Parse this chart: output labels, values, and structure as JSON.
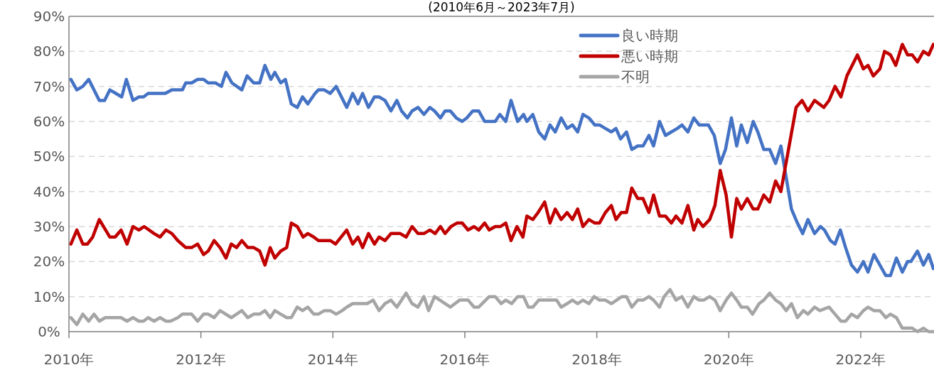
{
  "chart_data": {
    "type": "line",
    "title": "(2010年6月～2023年7月)",
    "xlim": [
      2010,
      2023.11
    ],
    "xticks": [
      {
        "value": 2010,
        "label": "2010年"
      },
      {
        "value": 2012,
        "label": "2012年"
      },
      {
        "value": 2014,
        "label": "2014年"
      },
      {
        "value": 2016,
        "label": "2016年"
      },
      {
        "value": 2018,
        "label": "2018年"
      },
      {
        "value": 2020,
        "label": "2020年"
      },
      {
        "value": 2022,
        "label": "2022年"
      }
    ],
    "ylim": [
      0,
      90
    ],
    "yticks": [
      {
        "value": 0,
        "label": "0%"
      },
      {
        "value": 10,
        "label": "10%"
      },
      {
        "value": 20,
        "label": "20%"
      },
      {
        "value": 30,
        "label": "30%"
      },
      {
        "value": 40,
        "label": "40%"
      },
      {
        "value": 50,
        "label": "50%"
      },
      {
        "value": 60,
        "label": "60%"
      },
      {
        "value": 70,
        "label": "70%"
      },
      {
        "value": 80,
        "label": "80%"
      },
      {
        "value": 90,
        "label": "90%"
      }
    ],
    "grid": "y",
    "legend": "top right",
    "marker": "none",
    "line_style": "solid",
    "series": [
      {
        "name": "良い時期",
        "color": "#4472c4",
        "x": [
          2010.03,
          2010.12,
          2010.21,
          2010.3,
          2010.46,
          2010.54,
          2010.62,
          2010.71,
          2010.8,
          2010.87,
          2010.97,
          2011.06,
          2011.13,
          2011.2,
          2011.46,
          2011.56,
          2011.72,
          2011.77,
          2011.86,
          2011.95,
          2012.04,
          2012.11,
          2012.22,
          2012.31,
          2012.38,
          2012.47,
          2012.62,
          2012.7,
          2012.8,
          2012.89,
          2012.97,
          2013.06,
          2013.12,
          2013.21,
          2013.28,
          2013.37,
          2013.46,
          2013.54,
          2013.62,
          2013.73,
          2013.78,
          2013.87,
          2013.96,
          2014.05,
          2014.21,
          2014.3,
          2014.38,
          2014.45,
          2014.54,
          2014.63,
          2014.7,
          2014.79,
          2014.88,
          2014.97,
          2015.04,
          2015.13,
          2015.2,
          2015.29,
          2015.38,
          2015.47,
          2015.54,
          2015.63,
          2015.7,
          2015.78,
          2015.87,
          2015.96,
          2016.03,
          2016.12,
          2016.21,
          2016.3,
          2016.46,
          2016.53,
          2016.62,
          2016.7,
          2016.8,
          2016.89,
          2016.94,
          2017.03,
          2017.12,
          2017.21,
          2017.29,
          2017.37,
          2017.46,
          2017.55,
          2017.63,
          2017.71,
          2017.79,
          2017.88,
          2017.97,
          2018.04,
          2018.13,
          2018.22,
          2018.29,
          2018.36,
          2018.45,
          2018.53,
          2018.62,
          2018.7,
          2018.79,
          2018.86,
          2018.95,
          2019.04,
          2019.13,
          2019.22,
          2019.29,
          2019.38,
          2019.47,
          2019.55,
          2019.69,
          2019.78,
          2019.87,
          2019.95,
          2020.04,
          2020.12,
          2020.19,
          2020.28,
          2020.37,
          2020.44,
          2020.53,
          2020.62,
          2020.71,
          2020.79,
          2020.95,
          2021.04,
          2021.12,
          2021.2,
          2021.3,
          2021.39,
          2021.45,
          2021.54,
          2021.61,
          2021.69,
          2021.77,
          2021.86,
          2021.95,
          2022.04,
          2022.11,
          2022.2,
          2022.29,
          2022.38,
          2022.45,
          2022.54,
          2022.63,
          2022.71,
          2022.76,
          2022.86,
          2022.95,
          2023.03,
          2023.1
        ],
        "values": [
          72,
          69,
          70,
          72,
          66,
          66,
          69,
          68,
          67,
          72,
          66,
          67,
          67,
          68,
          68,
          69,
          69,
          71,
          71,
          72,
          72,
          71,
          71,
          70,
          74,
          71,
          69,
          73,
          71,
          71,
          76,
          72,
          74,
          71,
          72,
          65,
          64,
          67,
          65,
          68,
          69,
          69,
          68,
          70,
          64,
          68,
          65,
          68,
          64,
          67,
          67,
          66,
          63,
          66,
          63,
          61,
          63,
          64,
          62,
          64,
          63,
          61,
          63,
          63,
          61,
          60,
          61,
          63,
          63,
          60,
          60,
          62,
          60,
          66,
          60,
          62,
          60,
          62,
          57,
          55,
          59,
          57,
          61,
          58,
          59,
          57,
          62,
          61,
          59,
          59,
          58,
          57,
          58,
          55,
          57,
          52,
          53,
          53,
          56,
          53,
          60,
          56,
          57,
          58,
          59,
          57,
          61,
          59,
          59,
          56,
          48,
          52,
          61,
          53,
          59,
          54,
          60,
          57,
          52,
          52,
          48,
          53,
          35,
          31,
          28,
          32,
          28,
          30,
          29,
          26,
          25,
          29,
          24,
          19,
          17,
          20,
          17,
          22,
          19,
          16,
          16,
          21,
          17,
          20,
          20,
          23,
          19,
          22,
          18
        ]
      },
      {
        "name": "悪い時期",
        "color": "#c00000",
        "x": [
          2010.03,
          2010.12,
          2010.21,
          2010.28,
          2010.36,
          2010.46,
          2010.62,
          2010.7,
          2010.79,
          2010.88,
          2010.97,
          2011.06,
          2011.14,
          2011.29,
          2011.38,
          2011.47,
          2011.56,
          2011.65,
          2011.77,
          2011.86,
          2011.95,
          2012.04,
          2012.11,
          2012.2,
          2012.29,
          2012.38,
          2012.46,
          2012.54,
          2012.62,
          2012.71,
          2012.8,
          2012.89,
          2012.97,
          2013.05,
          2013.12,
          2013.21,
          2013.3,
          2013.37,
          2013.46,
          2013.55,
          2013.62,
          2013.71,
          2013.78,
          2013.96,
          2014.04,
          2014.21,
          2014.3,
          2014.38,
          2014.45,
          2014.54,
          2014.63,
          2014.7,
          2014.79,
          2014.88,
          2015.02,
          2015.11,
          2015.2,
          2015.29,
          2015.38,
          2015.47,
          2015.55,
          2015.63,
          2015.7,
          2015.79,
          2015.88,
          2015.96,
          2016.05,
          2016.14,
          2016.21,
          2016.3,
          2016.37,
          2016.46,
          2016.54,
          2016.62,
          2016.7,
          2016.79,
          2016.88,
          2016.94,
          2017.03,
          2017.11,
          2017.21,
          2017.29,
          2017.37,
          2017.46,
          2017.55,
          2017.63,
          2017.71,
          2017.79,
          2017.88,
          2017.97,
          2018.04,
          2018.13,
          2018.22,
          2018.29,
          2018.37,
          2018.45,
          2018.53,
          2018.62,
          2018.7,
          2018.79,
          2018.86,
          2018.95,
          2019.04,
          2019.13,
          2019.2,
          2019.29,
          2019.38,
          2019.47,
          2019.53,
          2019.61,
          2019.71,
          2019.79,
          2019.87,
          2019.96,
          2020.04,
          2020.12,
          2020.19,
          2020.28,
          2020.37,
          2020.44,
          2020.53,
          2020.62,
          2020.71,
          2020.79,
          2021.02,
          2021.11,
          2021.2,
          2021.3,
          2021.44,
          2021.52,
          2021.61,
          2021.7,
          2021.79,
          2021.95,
          2022.04,
          2022.11,
          2022.19,
          2022.29,
          2022.36,
          2022.45,
          2022.53,
          2022.63,
          2022.71,
          2022.78,
          2022.86,
          2022.95,
          2023.03,
          2023.1
        ],
        "values": [
          25,
          29,
          25,
          25,
          27,
          32,
          27,
          27,
          29,
          25,
          30,
          29,
          30,
          28,
          27,
          29,
          28,
          26,
          24,
          24,
          25,
          22,
          23,
          26,
          24,
          21,
          25,
          24,
          26,
          24,
          24,
          23,
          19,
          24,
          21,
          23,
          24,
          31,
          30,
          27,
          28,
          27,
          26,
          26,
          25,
          29,
          25,
          27,
          24,
          28,
          25,
          27,
          26,
          28,
          28,
          27,
          30,
          28,
          28,
          29,
          28,
          30,
          28,
          30,
          31,
          31,
          29,
          30,
          29,
          31,
          29,
          30,
          30,
          31,
          26,
          30,
          27,
          33,
          32,
          34,
          37,
          31,
          35,
          32,
          34,
          32,
          35,
          30,
          32,
          31,
          31,
          34,
          36,
          32,
          34,
          34,
          41,
          38,
          38,
          34,
          39,
          33,
          33,
          31,
          33,
          31,
          36,
          29,
          32,
          30,
          32,
          36,
          46,
          39,
          27,
          38,
          35,
          38,
          35,
          35,
          39,
          37,
          43,
          40,
          64,
          66,
          63,
          66,
          64,
          66,
          70,
          67,
          73,
          79,
          75,
          76,
          73,
          75,
          80,
          79,
          76,
          82,
          79,
          79,
          77,
          80,
          79,
          82
        ]
      },
      {
        "name": "不明",
        "color": "#a5a5a5",
        "x": [
          2010.03,
          2010.12,
          2010.21,
          2010.3,
          2010.38,
          2010.46,
          2010.55,
          2010.79,
          2010.88,
          2010.97,
          2011.06,
          2011.13,
          2011.2,
          2011.29,
          2011.38,
          2011.47,
          2011.54,
          2011.65,
          2011.72,
          2011.86,
          2011.95,
          2012.04,
          2012.11,
          2012.2,
          2012.29,
          2012.46,
          2012.62,
          2012.71,
          2012.8,
          2012.89,
          2012.97,
          2013.05,
          2013.12,
          2013.21,
          2013.3,
          2013.37,
          2013.46,
          2013.54,
          2013.62,
          2013.71,
          2013.78,
          2013.87,
          2013.96,
          2014.05,
          2014.14,
          2014.21,
          2014.3,
          2014.41,
          2014.52,
          2014.61,
          2014.7,
          2014.79,
          2014.88,
          2014.97,
          2015.11,
          2015.2,
          2015.29,
          2015.38,
          2015.45,
          2015.54,
          2015.78,
          2015.92,
          2016.05,
          2016.14,
          2016.21,
          2016.37,
          2016.46,
          2016.55,
          2016.62,
          2016.71,
          2016.8,
          2016.89,
          2016.96,
          2017.03,
          2017.12,
          2017.39,
          2017.46,
          2017.55,
          2017.63,
          2017.71,
          2017.79,
          2017.88,
          2017.96,
          2018.04,
          2018.13,
          2018.22,
          2018.38,
          2018.45,
          2018.53,
          2018.62,
          2018.7,
          2018.79,
          2018.86,
          2018.95,
          2019.02,
          2019.11,
          2019.2,
          2019.29,
          2019.38,
          2019.47,
          2019.55,
          2019.62,
          2019.71,
          2019.79,
          2019.87,
          2019.96,
          2020.04,
          2020.12,
          2020.19,
          2020.28,
          2020.36,
          2020.46,
          2020.53,
          2020.62,
          2020.71,
          2020.79,
          2020.87,
          2020.95,
          2021.04,
          2021.13,
          2021.2,
          2021.3,
          2021.38,
          2021.52,
          2021.61,
          2021.7,
          2021.77,
          2021.86,
          2021.95,
          2022.04,
          2022.11,
          2022.2,
          2022.29,
          2022.38,
          2022.45,
          2022.54,
          2022.63,
          2022.71,
          2022.78,
          2022.86,
          2022.95,
          2023.03,
          2023.1
        ],
        "values": [
          4,
          2,
          5,
          3,
          5,
          3,
          4,
          4,
          3,
          4,
          3,
          3,
          4,
          3,
          4,
          3,
          3,
          4,
          5,
          5,
          3,
          5,
          5,
          4,
          6,
          4,
          6,
          4,
          5,
          5,
          6,
          4,
          6,
          5,
          4,
          4,
          7,
          6,
          7,
          5,
          5,
          6,
          6,
          5,
          6,
          7,
          8,
          8,
          8,
          9,
          6,
          8,
          9,
          7,
          11,
          8,
          7,
          10,
          6,
          10,
          7,
          9,
          9,
          7,
          7,
          10,
          10,
          8,
          9,
          8,
          10,
          10,
          7,
          7,
          9,
          9,
          7,
          8,
          9,
          8,
          9,
          8,
          10,
          9,
          9,
          8,
          10,
          10,
          7,
          9,
          9,
          10,
          9,
          7,
          10,
          12,
          9,
          10,
          7,
          10,
          9,
          9,
          10,
          9,
          6,
          9,
          11,
          9,
          7,
          7,
          5,
          8,
          9,
          11,
          9,
          8,
          6,
          8,
          4,
          6,
          5,
          7,
          6,
          7,
          5,
          3,
          3,
          5,
          4,
          6,
          7,
          6,
          6,
          4,
          5,
          4,
          1,
          1,
          1,
          0,
          1,
          0,
          0
        ]
      }
    ]
  }
}
